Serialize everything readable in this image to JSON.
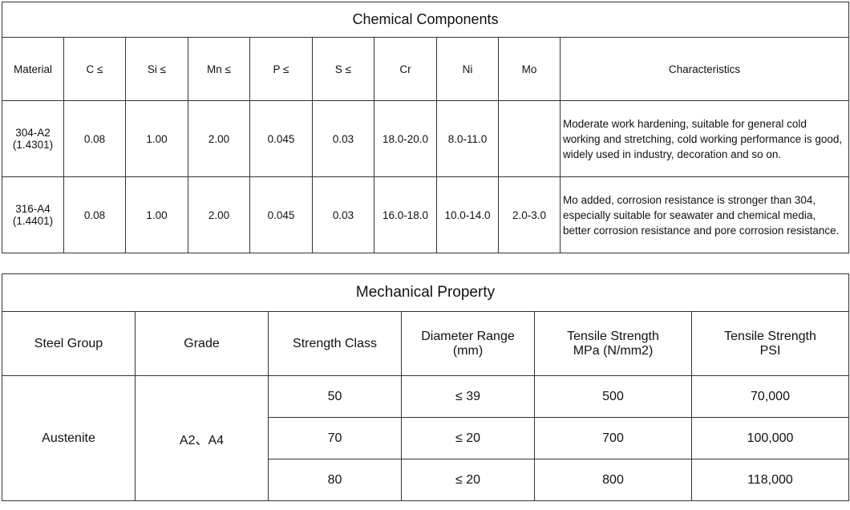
{
  "chemical": {
    "title": "Chemical Components",
    "headers": [
      "Material",
      "C ≤",
      "Si ≤",
      "Mn ≤",
      "P ≤",
      "S ≤",
      "Cr",
      "Ni",
      "Mo",
      "Characteristics"
    ],
    "rows": [
      {
        "material": [
          "304-A2",
          "(1.4301)"
        ],
        "c": "0.08",
        "si": "1.00",
        "mn": "2.00",
        "p": "0.045",
        "s": "0.03",
        "cr": "18.0-20.0",
        "ni": "8.0-11.0",
        "characteristics": "Moderate work hardening, suitable for general cold working and stretching, cold working performance is good, widely used in industry, decoration and so on."
      },
      {
        "material": [
          "316-A4",
          "(1.4401)"
        ],
        "c": "0.08",
        "si": "1.00",
        "mn": "2.00",
        "p": "0.045",
        "s": "0.03",
        "cr": "16.0-18.0",
        "ni": "10.0-14.0",
        "mo": "2.0-3.0",
        "characteristics": "Mo added, corrosion resistance is stronger than 304, especially suitable for seawater and chemical media, better corrosion resistance and pore corrosion resistance."
      }
    ]
  },
  "mechanical": {
    "title": "Mechanical Property",
    "headers": [
      [
        "Steel Group"
      ],
      [
        "Grade"
      ],
      [
        "Strength Class"
      ],
      [
        "Diameter Range",
        "(mm)"
      ],
      [
        "Tensile Strength",
        "MPa (N/mm2)"
      ],
      [
        "Tensile Strength",
        "PSI"
      ]
    ],
    "group": "Austenite",
    "grade": "A2、A4",
    "rows": [
      {
        "class": "50",
        "diameter": "≤ 39",
        "mpa": "500",
        "psi": "70,000"
      },
      {
        "class": "70",
        "diameter": "≤ 20",
        "mpa": "700",
        "psi": "100,000"
      },
      {
        "class": "80",
        "diameter": "≤ 20",
        "mpa": "800",
        "psi": "118,000"
      }
    ]
  }
}
